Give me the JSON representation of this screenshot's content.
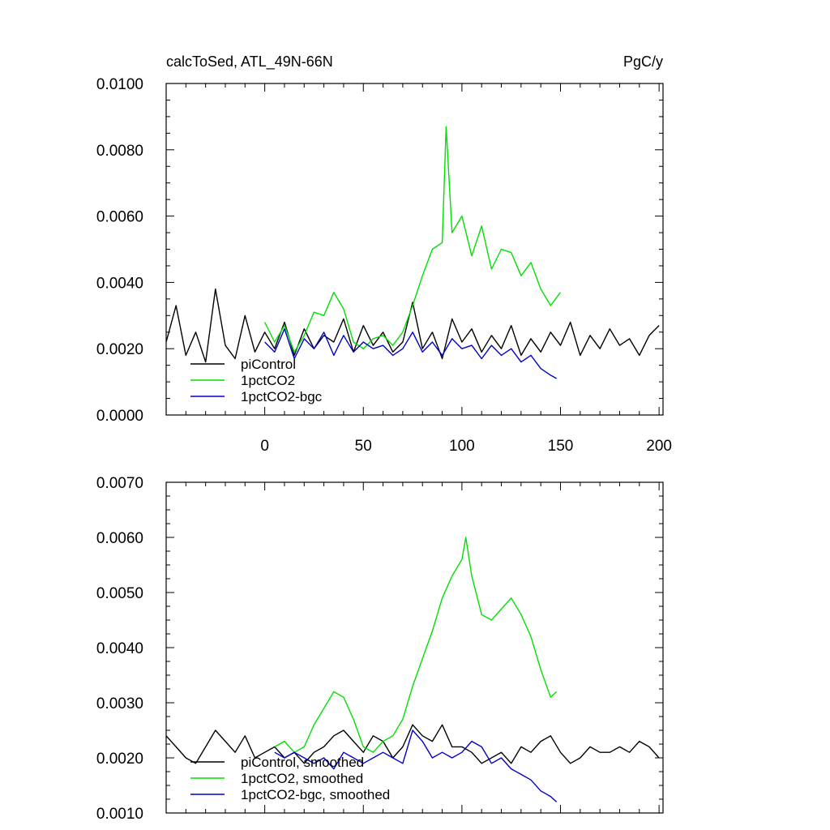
{
  "chart_data": [
    {
      "type": "line",
      "title": "calcToSed, ATL_49N-66N",
      "units": "PgC/y",
      "xlim": [
        -50,
        202
      ],
      "ylim": [
        0.0,
        0.01
      ],
      "xticks": [
        0,
        50,
        100,
        150,
        200
      ],
      "xtick_labels": [
        "0",
        "50",
        "100",
        "150",
        "200"
      ],
      "yticks": [
        0.0,
        0.002,
        0.004,
        0.006,
        0.008,
        0.01
      ],
      "ytick_labels": [
        "0.0000",
        "0.0020",
        "0.0040",
        "0.0060",
        "0.0080",
        "0.0100"
      ],
      "legend_position": "bottom-left",
      "series": [
        {
          "name": "piControl",
          "color": "#000000",
          "x": [
            -50,
            -45,
            -40,
            -35,
            -30,
            -25,
            -20,
            -15,
            -10,
            -5,
            0,
            5,
            10,
            15,
            20,
            25,
            30,
            35,
            40,
            45,
            50,
            55,
            60,
            65,
            70,
            75,
            80,
            85,
            90,
            95,
            100,
            105,
            110,
            115,
            120,
            125,
            130,
            135,
            140,
            145,
            150,
            155,
            160,
            165,
            170,
            175,
            180,
            185,
            190,
            195,
            200
          ],
          "values": [
            0.0022,
            0.0033,
            0.0018,
            0.0025,
            0.0016,
            0.0038,
            0.0021,
            0.0017,
            0.003,
            0.0019,
            0.0025,
            0.002,
            0.0028,
            0.0018,
            0.0026,
            0.002,
            0.0024,
            0.0022,
            0.0029,
            0.0019,
            0.0027,
            0.0021,
            0.0025,
            0.0019,
            0.0022,
            0.0034,
            0.002,
            0.0025,
            0.0017,
            0.0029,
            0.0022,
            0.0026,
            0.0019,
            0.0024,
            0.002,
            0.0027,
            0.0018,
            0.0023,
            0.0019,
            0.0025,
            0.0021,
            0.0028,
            0.0018,
            0.0024,
            0.002,
            0.0026,
            0.0021,
            0.0023,
            0.0018,
            0.0024,
            0.0027
          ]
        },
        {
          "name": "1pctCO2",
          "color": "#00e000",
          "x": [
            0,
            5,
            10,
            15,
            20,
            25,
            30,
            35,
            40,
            45,
            50,
            55,
            60,
            65,
            70,
            75,
            80,
            85,
            90,
            92,
            95,
            100,
            105,
            110,
            115,
            120,
            125,
            130,
            135,
            140,
            145,
            150
          ],
          "values": [
            0.0028,
            0.0022,
            0.0027,
            0.0019,
            0.0024,
            0.0031,
            0.003,
            0.0037,
            0.0032,
            0.0022,
            0.002,
            0.0023,
            0.0024,
            0.0021,
            0.0025,
            0.0033,
            0.0042,
            0.005,
            0.0052,
            0.0087,
            0.0055,
            0.006,
            0.0048,
            0.0057,
            0.0044,
            0.005,
            0.0049,
            0.0042,
            0.0046,
            0.0038,
            0.0033,
            0.0037
          ]
        },
        {
          "name": "1pctCO2-bgc",
          "color": "#0000cc",
          "x": [
            0,
            5,
            10,
            15,
            20,
            25,
            30,
            35,
            40,
            45,
            50,
            55,
            60,
            65,
            70,
            75,
            80,
            85,
            90,
            95,
            100,
            105,
            110,
            115,
            120,
            125,
            130,
            135,
            140,
            145,
            148
          ],
          "values": [
            0.0022,
            0.0019,
            0.0026,
            0.0017,
            0.0023,
            0.002,
            0.0025,
            0.0018,
            0.0024,
            0.0019,
            0.0022,
            0.002,
            0.0021,
            0.0018,
            0.002,
            0.0025,
            0.0019,
            0.0022,
            0.0018,
            0.0023,
            0.002,
            0.0021,
            0.0017,
            0.0021,
            0.0018,
            0.002,
            0.0016,
            0.0018,
            0.0014,
            0.0012,
            0.0011
          ]
        }
      ]
    },
    {
      "type": "line",
      "xlim": [
        -50,
        202
      ],
      "ylim": [
        0.001,
        0.007
      ],
      "xticks": [
        0,
        50,
        100,
        150,
        200
      ],
      "yticks": [
        0.001,
        0.002,
        0.003,
        0.004,
        0.005,
        0.006,
        0.007
      ],
      "ytick_labels": [
        "0.0010",
        "0.0020",
        "0.0030",
        "0.0040",
        "0.0050",
        "0.0060",
        "0.0070"
      ],
      "legend_position": "bottom-left",
      "series": [
        {
          "name": "piControl, smoothed",
          "color": "#000000",
          "x": [
            -50,
            -45,
            -40,
            -35,
            -30,
            -25,
            -20,
            -15,
            -10,
            -5,
            0,
            5,
            10,
            15,
            20,
            25,
            30,
            35,
            40,
            45,
            50,
            55,
            60,
            65,
            70,
            75,
            80,
            85,
            90,
            95,
            100,
            105,
            110,
            115,
            120,
            125,
            130,
            135,
            140,
            145,
            150,
            155,
            160,
            165,
            170,
            175,
            180,
            185,
            190,
            195,
            200
          ],
          "values": [
            0.0024,
            0.0022,
            0.002,
            0.0019,
            0.0022,
            0.0025,
            0.0023,
            0.0021,
            0.0024,
            0.002,
            0.0021,
            0.0022,
            0.002,
            0.0021,
            0.0019,
            0.0021,
            0.0022,
            0.0024,
            0.0025,
            0.0023,
            0.0021,
            0.0024,
            0.0023,
            0.002,
            0.0022,
            0.0026,
            0.0024,
            0.0023,
            0.0026,
            0.0022,
            0.0022,
            0.0021,
            0.0019,
            0.002,
            0.0021,
            0.0019,
            0.0022,
            0.0021,
            0.0023,
            0.0024,
            0.0021,
            0.0019,
            0.002,
            0.0022,
            0.0021,
            0.0021,
            0.0022,
            0.0021,
            0.0023,
            0.0022,
            0.002
          ]
        },
        {
          "name": "1pctCO2, smoothed",
          "color": "#00e000",
          "x": [
            5,
            10,
            15,
            20,
            25,
            30,
            35,
            40,
            45,
            50,
            55,
            60,
            65,
            70,
            75,
            80,
            85,
            90,
            95,
            100,
            102,
            105,
            110,
            115,
            120,
            125,
            130,
            135,
            140,
            145,
            148
          ],
          "values": [
            0.0022,
            0.0023,
            0.0021,
            0.0022,
            0.0026,
            0.0029,
            0.0032,
            0.0031,
            0.0027,
            0.0022,
            0.0021,
            0.0023,
            0.0024,
            0.0027,
            0.0033,
            0.0038,
            0.0043,
            0.0049,
            0.0053,
            0.0056,
            0.006,
            0.0053,
            0.0046,
            0.0045,
            0.0047,
            0.0049,
            0.0046,
            0.0042,
            0.0036,
            0.0031,
            0.0032
          ]
        },
        {
          "name": "1pctCO2-bgc, smoothed",
          "color": "#0000cc",
          "x": [
            5,
            10,
            15,
            20,
            25,
            30,
            35,
            40,
            45,
            50,
            55,
            60,
            65,
            70,
            75,
            80,
            85,
            90,
            95,
            100,
            105,
            110,
            115,
            120,
            125,
            130,
            135,
            140,
            145,
            148
          ],
          "values": [
            0.0021,
            0.002,
            0.0021,
            0.002,
            0.0019,
            0.002,
            0.0018,
            0.0021,
            0.002,
            0.0019,
            0.002,
            0.0021,
            0.002,
            0.0019,
            0.0025,
            0.0023,
            0.002,
            0.0021,
            0.002,
            0.0021,
            0.0023,
            0.0022,
            0.0019,
            0.002,
            0.0018,
            0.0017,
            0.0016,
            0.0014,
            0.0013,
            0.0012
          ]
        }
      ]
    }
  ]
}
